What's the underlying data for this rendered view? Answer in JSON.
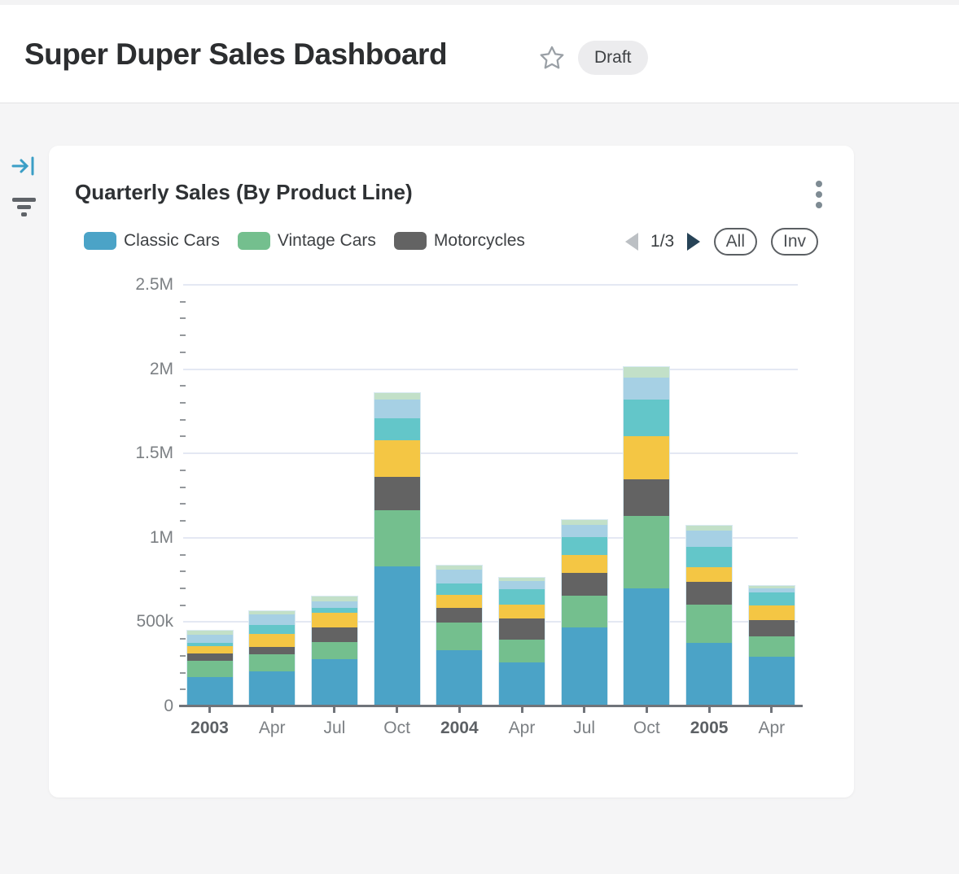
{
  "header": {
    "title": "Super Duper Sales Dashboard",
    "badge": "Draft"
  },
  "card": {
    "title": "Quarterly Sales (By Product Line)",
    "legend": {
      "items": [
        {
          "label": "Classic Cars",
          "color": "#4BA3C7"
        },
        {
          "label": "Vintage Cars",
          "color": "#74BF8E"
        },
        {
          "label": "Motorcycles",
          "color": "#636363"
        }
      ],
      "pager": {
        "page": "1/3"
      },
      "buttons": {
        "all": "All",
        "inv": "Inv"
      }
    }
  },
  "chart_data": {
    "type": "bar",
    "stacked": true,
    "title": "Quarterly Sales (By Product Line)",
    "categories": [
      "2003",
      "Apr",
      "Jul",
      "Oct",
      "2004",
      "Apr",
      "Jul",
      "Oct",
      "2005",
      "Apr"
    ],
    "bold_categories": [
      0,
      4,
      8
    ],
    "series": [
      {
        "name": "Classic Cars",
        "color": "#4BA3C7",
        "values": [
          172000,
          207000,
          282000,
          828000,
          335000,
          263000,
          468000,
          699000,
          375000,
          295000
        ]
      },
      {
        "name": "Vintage Cars",
        "color": "#74BF8E",
        "values": [
          99000,
          101000,
          101000,
          337000,
          160000,
          131000,
          188000,
          433000,
          228000,
          120000
        ]
      },
      {
        "name": "Motorcycles",
        "color": "#636363",
        "values": [
          45000,
          43000,
          88000,
          196000,
          88000,
          128000,
          133000,
          216000,
          138000,
          96000
        ]
      },
      {
        "name": "Unknown series (yellow, legend page 2)",
        "color": "#F4C644",
        "values": [
          40000,
          77000,
          85000,
          216000,
          80000,
          80000,
          107000,
          253000,
          87000,
          88000
        ]
      },
      {
        "name": "Unknown series (teal, legend page 2)",
        "color": "#63C6C9",
        "values": [
          23000,
          54000,
          27000,
          130000,
          67000,
          93000,
          108000,
          220000,
          117000,
          75000
        ]
      },
      {
        "name": "Unknown series (light blue, legend page 2)",
        "color": "#A6D0E4",
        "values": [
          48000,
          64000,
          40000,
          111000,
          82000,
          48000,
          74000,
          128000,
          100000,
          24000
        ]
      },
      {
        "name": "Unknown series (light green, legend page 3)",
        "color": "#C2E0C8",
        "values": [
          21000,
          17000,
          27000,
          40000,
          23000,
          19000,
          27000,
          65000,
          29000,
          16000
        ]
      }
    ],
    "ylim": [
      0,
      2500000
    ],
    "yticks": [
      {
        "label": "2.5M",
        "value": 2500000
      },
      {
        "label": "2M",
        "value": 2000000
      },
      {
        "label": "1.5M",
        "value": 1500000
      },
      {
        "label": "1M",
        "value": 1000000
      },
      {
        "label": "500k",
        "value": 500000
      },
      {
        "label": "0",
        "value": 0
      }
    ],
    "minor_tick_step": 100000,
    "grid": "horizontal",
    "legend_position": "top"
  }
}
